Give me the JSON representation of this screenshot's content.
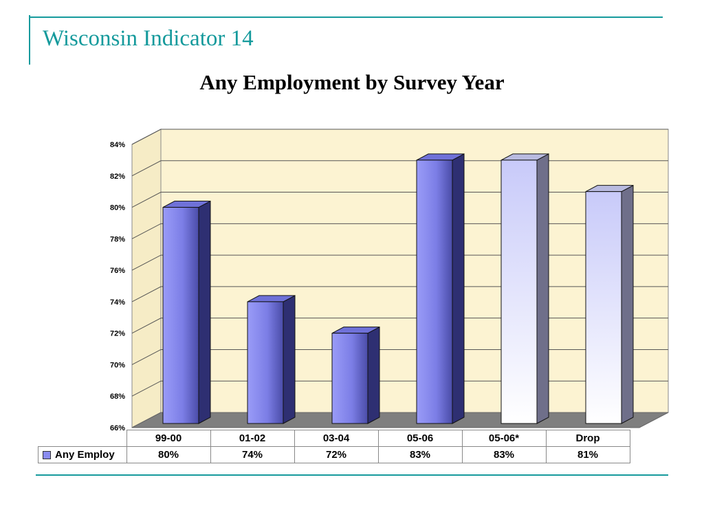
{
  "slide": {
    "title": "Wisconsin Indicator 14"
  },
  "chart_data": {
    "type": "bar",
    "title": "Any Employment by Survey Year",
    "categories": [
      "99-00",
      "01-02",
      "03-04",
      "05-06",
      "05-06*",
      "Drop"
    ],
    "series": [
      {
        "name": "Any Employ",
        "values": [
          80,
          74,
          72,
          83,
          83,
          81
        ]
      }
    ],
    "data_labels": [
      "80%",
      "74%",
      "72%",
      "83%",
      "83%",
      "81%"
    ],
    "ylim": [
      66,
      84
    ],
    "yticks": [
      66,
      68,
      70,
      72,
      74,
      76,
      78,
      80,
      82,
      84
    ],
    "ytick_labels": [
      "66%",
      "68%",
      "70%",
      "72%",
      "74%",
      "76%",
      "78%",
      "80%",
      "82%",
      "84%"
    ],
    "grid": true,
    "three_d": true,
    "legend": "data-table-left",
    "colors": {
      "plot_background": "#fcf3d2",
      "bar_default": "#8a8cf0",
      "bar_highlight": "#d4d6fc",
      "floor": "#7f7f7f"
    },
    "highlighted_categories": [
      "05-06*",
      "Drop"
    ]
  }
}
